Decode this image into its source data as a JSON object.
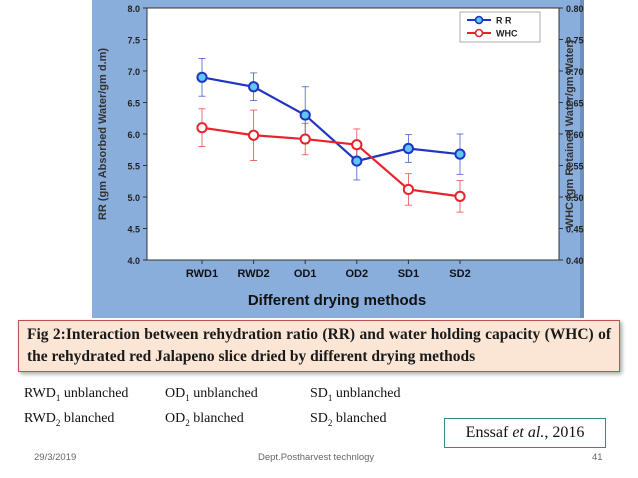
{
  "chart_data": {
    "type": "line",
    "categories": [
      "RWD1",
      "RWD2",
      "OD1",
      "OD2",
      "SD1",
      "SD2"
    ],
    "xlabel": "Different drying methods",
    "ylabel": "RR (gm Absorbed Water/gm d.m)",
    "ylabel_right": "WHC (gm Retained Water/gm Water)",
    "ylim": [
      4.0,
      8.0
    ],
    "ylim_right": [
      0.4,
      0.8
    ],
    "yticks": [
      "4.0",
      "4.5",
      "5.0",
      "5.5",
      "6.0",
      "6.5",
      "7.0",
      "7.5",
      "8.0"
    ],
    "yticks_right": [
      "0.40",
      "0.45",
      "0.50",
      "0.55",
      "0.60",
      "0.65",
      "0.70",
      "0.75",
      "0.80"
    ],
    "series": [
      {
        "name": "R R",
        "axis": "left",
        "color": "#1f35c4",
        "marker_fill": "#5ec8ef",
        "values": [
          6.9,
          6.75,
          6.3,
          5.57,
          5.77,
          5.68
        ],
        "errors": [
          0.3,
          0.22,
          0.45,
          0.3,
          0.22,
          0.32
        ]
      },
      {
        "name": "WHC",
        "axis": "right",
        "color": "#e8232b",
        "marker_fill": "#ffffff",
        "values": [
          0.61,
          0.598,
          0.592,
          0.583,
          0.512,
          0.501
        ],
        "errors": [
          0.03,
          0.04,
          0.025,
          0.025,
          0.025,
          0.025
        ]
      }
    ],
    "legend_position": "top-right",
    "grid": false
  },
  "caption": "Fig 2:Interaction between rehydration ratio (RR) and water holding capacity (WHC) of the rehydrated red Jalapeno slice dried by different drying methods",
  "legend": {
    "rwd1": {
      "base": "RWD",
      "sub": "1",
      "text": " unblanched"
    },
    "rwd2": {
      "base": "RWD",
      "sub": "2",
      "text": " blanched"
    },
    "od1": {
      "base": "OD",
      "sub": "1",
      "text": " unblanched"
    },
    "od2": {
      "base": "OD",
      "sub": "2",
      "text": " blanched"
    },
    "sd1": {
      "base": "SD",
      "sub": "1",
      "text": " unblanched"
    },
    "sd2": {
      "base": "SD",
      "sub": "2",
      "text": " blanched"
    }
  },
  "citation": {
    "authors": "Enssaf ",
    "etal": "et al.",
    "year": ", 2016"
  },
  "footer": {
    "date": "29/3/2019",
    "department": "Dept.Postharvest technlogy",
    "page": "41"
  }
}
